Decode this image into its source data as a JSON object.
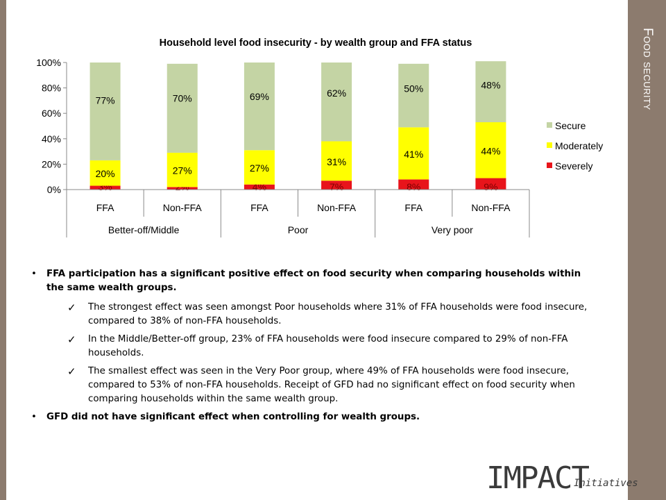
{
  "side_title": "Food security",
  "chart_data": {
    "type": "bar",
    "stacked": true,
    "title": "Household level food insecurity - by wealth group and FFA status",
    "yaxis_ticks": [
      "0%",
      "20%",
      "40%",
      "60%",
      "80%",
      "100%"
    ],
    "ylim": [
      0,
      100
    ],
    "categories": [
      "FFA",
      "Non-FFA",
      "FFA",
      "Non-FFA",
      "FFA",
      "Non-FFA"
    ],
    "groups": [
      {
        "label": "Better-off/Middle",
        "span": 2
      },
      {
        "label": "Poor",
        "span": 2
      },
      {
        "label": "Very poor",
        "span": 2
      }
    ],
    "series": [
      {
        "name": "Severely",
        "color": "#e8141b",
        "values": [
          3,
          2,
          4,
          7,
          8,
          9
        ],
        "labels": [
          "3%",
          "2%",
          "4%",
          "7%",
          "8%",
          "9%"
        ]
      },
      {
        "name": "Moderately",
        "color": "#ffff00",
        "values": [
          20,
          27,
          27,
          31,
          41,
          44
        ],
        "labels": [
          "20%",
          "27%",
          "27%",
          "31%",
          "41%",
          "44%"
        ]
      },
      {
        "name": "Secure",
        "color": "#c4d4a4",
        "values": [
          77,
          70,
          69,
          62,
          50,
          48
        ],
        "labels": [
          "77%",
          "70%",
          "69%",
          "62%",
          "50%",
          "48%"
        ]
      }
    ],
    "legend_order": [
      "Secure",
      "Moderately",
      "Severely"
    ],
    "legend_position": "right",
    "grid": false
  },
  "bullets": [
    {
      "text": "FFA participation has a significant positive effect on food security when comparing households within the same wealth groups.",
      "subs": [
        "The strongest effect was seen amongst Poor households where 31% of FFA households were food insecure, compared to 38% of non-FFA households.",
        "In the Middle/Better-off group, 23% of FFA households were food insecure compared to 29% of non-FFA households.",
        "The smallest effect was seen in the Very Poor group, where 49% of FFA households were food insecure, compared to 53% of non-FFA households. Receipt of GFD had no significant effect on food security when comparing households within the same wealth group."
      ]
    },
    {
      "text": "GFD did not have significant effect when controlling for wealth groups.",
      "subs": []
    }
  ],
  "logo": {
    "main": "IMPACT",
    "sub": "Initiatives"
  }
}
